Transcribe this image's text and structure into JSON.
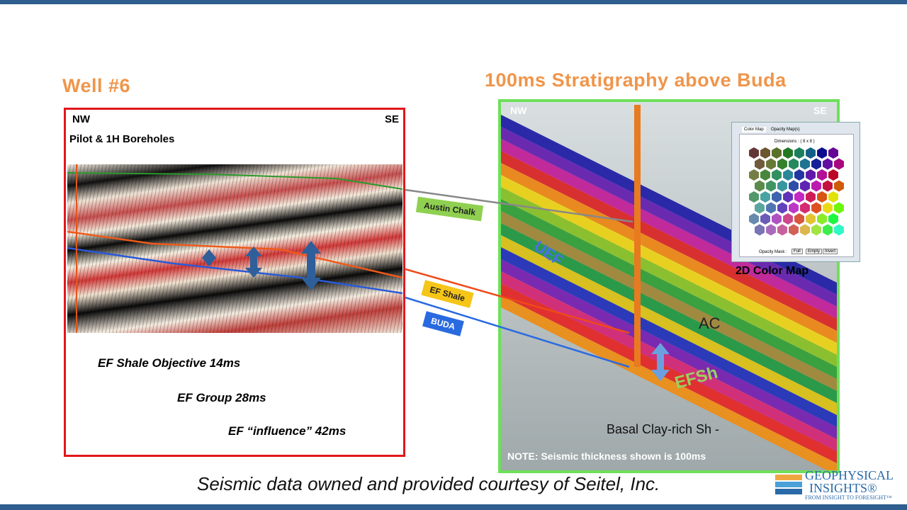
{
  "left_panel": {
    "title": "Well #6",
    "nw": "NW",
    "se": "SE",
    "boreholes": "Pilot &  1H Boreholes",
    "notes": [
      "EF Shale Objective 14ms",
      "EF Group 28ms",
      "EF “influence” 42ms"
    ]
  },
  "right_panel": {
    "title": "100ms Stratigraphy above Buda",
    "nw": "NW",
    "se": "SE",
    "labels": {
      "uef": "UEF",
      "ac": "AC",
      "efsh": "EFSh",
      "basal": "Basal Clay-rich Sh -"
    },
    "note": "NOTE:   Seismic thickness shown is 100ms"
  },
  "horizons": [
    "Austin Chalk",
    "EF Shale",
    "BUDA"
  ],
  "color_map": {
    "tabs": [
      "Color Map",
      "Opacity Map(s)"
    ],
    "dimensions": "Dimensions :  ( 8 x 8 )",
    "opacity_label": "Opacity Mask :",
    "buttons": [
      "Full",
      "Empty",
      "Invert"
    ],
    "caption": "2D Color  Map"
  },
  "footer": {
    "credit": "Seismic data owned and provided courtesy of Seitel, Inc.",
    "logo": [
      "GEOPHYSICAL",
      "INSIGHTS®",
      "FROM INSIGHT TO FORESIGHT™"
    ]
  }
}
